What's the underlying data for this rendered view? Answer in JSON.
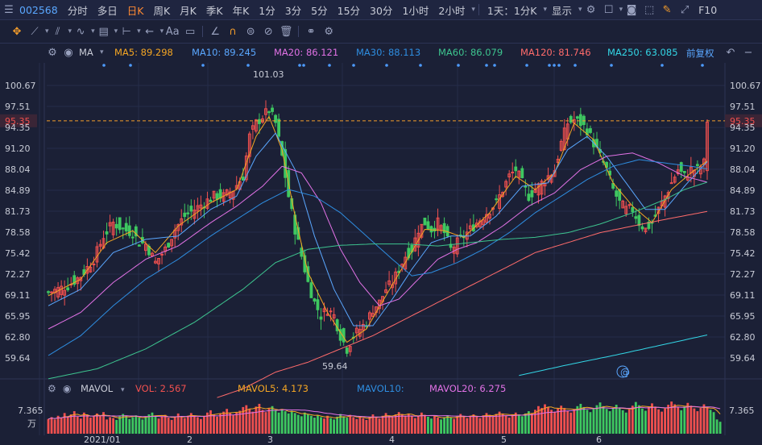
{
  "top_bar": {
    "stock_code": "002568",
    "periods": [
      "分时",
      "多日",
      "日K",
      "周K",
      "月K",
      "季K",
      "年K",
      "1分",
      "3分",
      "5分",
      "15分",
      "30分",
      "1小时",
      "2小时"
    ],
    "active_period": "日K",
    "range_select": "1天：1分K",
    "display_label": "显示",
    "f10_label": "F10"
  },
  "ma_bar": {
    "indicator": "MA",
    "ma5": "MA5: 89.298",
    "ma10": "MA10: 89.245",
    "ma20": "MA20: 86.121",
    "ma30": "MA30: 88.113",
    "ma60": "MA60: 86.079",
    "ma120": "MA120: 81.746",
    "ma250": "MA250: 63.085",
    "adjust": "前复权"
  },
  "vol_bar": {
    "indicator": "MAVOL",
    "vol": "VOL: 2.567",
    "mavol5": "MAVOL5: 4.173",
    "mavol10": "MAVOL10:",
    "mavol20": "MAVOL20: 6.275"
  },
  "colors": {
    "up": "#f0504f",
    "down": "#3ec860",
    "bg": "#1b2036",
    "ma5": "#f5a623",
    "ma10": "#5aa7ff",
    "ma20": "#e272e6",
    "ma30": "#2e8de0",
    "ma60": "#3dc48f",
    "ma120": "#ff6b6b",
    "ma250": "#33d6e6",
    "last_price": "#f0504f"
  },
  "chart_data": {
    "type": "candlestick",
    "y_ticks": [
      "100.67",
      "97.51",
      "94.35",
      "91.20",
      "88.04",
      "84.89",
      "81.73",
      "78.58",
      "75.42",
      "72.27",
      "69.11",
      "65.95",
      "62.80",
      "59.64"
    ],
    "ylim": [
      59.64,
      100.67
    ],
    "x_ticks": [
      "2021/01",
      "2",
      "3",
      "4",
      "5",
      "6"
    ],
    "last_price": "95.35",
    "high_label": "101.03",
    "low_label": "59.64",
    "vol_axis_label": "7.365",
    "vol_unit": "万",
    "vol_max": 7.365,
    "close_path": [
      [
        0,
        69.5
      ],
      [
        6,
        70.5
      ],
      [
        10,
        72
      ],
      [
        14,
        74.5
      ],
      [
        17,
        78
      ],
      [
        20,
        80
      ],
      [
        23,
        79
      ],
      [
        26,
        78.5
      ],
      [
        28,
        77
      ],
      [
        30,
        76.8
      ],
      [
        33,
        74
      ],
      [
        36,
        76
      ],
      [
        39,
        79
      ],
      [
        42,
        81
      ],
      [
        45,
        82
      ],
      [
        48,
        83
      ],
      [
        51,
        84
      ],
      [
        54,
        84
      ],
      [
        57,
        85
      ],
      [
        60,
        87
      ],
      [
        62,
        93
      ],
      [
        64,
        95
      ],
      [
        66,
        96
      ],
      [
        68,
        97
      ],
      [
        70,
        95
      ],
      [
        72,
        90
      ],
      [
        74,
        84
      ],
      [
        76,
        79
      ],
      [
        78,
        75
      ],
      [
        80,
        71
      ],
      [
        82,
        68
      ],
      [
        84,
        66
      ],
      [
        86,
        67
      ],
      [
        88,
        66
      ],
      [
        90,
        63
      ],
      [
        92,
        61
      ],
      [
        94,
        63
      ],
      [
        96,
        64
      ],
      [
        98,
        65
      ],
      [
        100,
        67
      ],
      [
        102,
        68
      ],
      [
        104,
        70
      ],
      [
        106,
        71
      ],
      [
        108,
        73
      ],
      [
        110,
        75
      ],
      [
        112,
        76
      ],
      [
        114,
        79
      ],
      [
        116,
        80
      ],
      [
        118,
        79
      ],
      [
        120,
        80
      ],
      [
        122,
        78.5
      ],
      [
        124,
        76
      ],
      [
        126,
        77
      ],
      [
        128,
        78
      ],
      [
        130,
        79
      ],
      [
        132,
        80
      ],
      [
        134,
        81
      ],
      [
        136,
        82
      ],
      [
        138,
        83
      ],
      [
        140,
        85
      ],
      [
        142,
        87
      ],
      [
        144,
        88
      ],
      [
        146,
        86
      ],
      [
        148,
        84
      ],
      [
        150,
        85
      ],
      [
        152,
        86
      ],
      [
        154,
        87
      ],
      [
        156,
        88
      ],
      [
        158,
        92
      ],
      [
        160,
        95
      ],
      [
        162,
        95.5
      ],
      [
        164,
        95
      ],
      [
        166,
        94
      ],
      [
        168,
        92
      ],
      [
        170,
        90
      ],
      [
        172,
        88
      ],
      [
        174,
        85
      ],
      [
        176,
        83
      ],
      [
        178,
        82
      ],
      [
        180,
        82
      ],
      [
        182,
        80
      ],
      [
        184,
        79
      ],
      [
        186,
        80
      ],
      [
        188,
        82
      ],
      [
        190,
        84
      ],
      [
        192,
        86
      ],
      [
        194,
        88
      ],
      [
        196,
        87
      ],
      [
        198,
        88
      ],
      [
        200,
        88
      ],
      [
        202,
        89
      ],
      [
        203,
        95.4
      ]
    ],
    "ma_lines": [
      {
        "name": "MA5",
        "points": [
          [
            0,
            69
          ],
          [
            10,
            71.5
          ],
          [
            18,
            77
          ],
          [
            26,
            78.8
          ],
          [
            33,
            75.5
          ],
          [
            40,
            79.5
          ],
          [
            50,
            83
          ],
          [
            58,
            85
          ],
          [
            64,
            93
          ],
          [
            68,
            96
          ],
          [
            72,
            91
          ],
          [
            76,
            81
          ],
          [
            80,
            72.5
          ],
          [
            86,
            66.5
          ],
          [
            92,
            62
          ],
          [
            98,
            64
          ],
          [
            104,
            69
          ],
          [
            110,
            74
          ],
          [
            116,
            79
          ],
          [
            122,
            78.8
          ],
          [
            128,
            77.8
          ],
          [
            136,
            81.5
          ],
          [
            144,
            87
          ],
          [
            150,
            85
          ],
          [
            156,
            87.5
          ],
          [
            162,
            95
          ],
          [
            168,
            92.5
          ],
          [
            174,
            86
          ],
          [
            180,
            82.5
          ],
          [
            186,
            80
          ],
          [
            192,
            85
          ],
          [
            198,
            87.5
          ],
          [
            203,
            89.3
          ]
        ]
      },
      {
        "name": "MA10",
        "points": [
          [
            0,
            67.5
          ],
          [
            10,
            70
          ],
          [
            20,
            75.5
          ],
          [
            30,
            77.5
          ],
          [
            40,
            78
          ],
          [
            50,
            82
          ],
          [
            58,
            84
          ],
          [
            64,
            90
          ],
          [
            70,
            93.5
          ],
          [
            76,
            88
          ],
          [
            82,
            78
          ],
          [
            88,
            70
          ],
          [
            94,
            64.5
          ],
          [
            100,
            64.5
          ],
          [
            106,
            68.5
          ],
          [
            112,
            73
          ],
          [
            118,
            77
          ],
          [
            124,
            78
          ],
          [
            130,
            78
          ],
          [
            138,
            81
          ],
          [
            146,
            85.5
          ],
          [
            154,
            86
          ],
          [
            160,
            91
          ],
          [
            166,
            93
          ],
          [
            172,
            90
          ],
          [
            178,
            86
          ],
          [
            184,
            82
          ],
          [
            190,
            82
          ],
          [
            196,
            85.5
          ],
          [
            203,
            89.2
          ]
        ]
      },
      {
        "name": "MA20",
        "points": [
          [
            0,
            64
          ],
          [
            10,
            66.5
          ],
          [
            20,
            71
          ],
          [
            30,
            74.5
          ],
          [
            40,
            76.5
          ],
          [
            50,
            80
          ],
          [
            58,
            82.5
          ],
          [
            66,
            85.5
          ],
          [
            72,
            88.5
          ],
          [
            78,
            87.5
          ],
          [
            84,
            83
          ],
          [
            90,
            76
          ],
          [
            96,
            71
          ],
          [
            102,
            67.5
          ],
          [
            108,
            68.5
          ],
          [
            114,
            71.5
          ],
          [
            120,
            74.5
          ],
          [
            126,
            76
          ],
          [
            132,
            77
          ],
          [
            140,
            79.5
          ],
          [
            148,
            82.5
          ],
          [
            156,
            84.5
          ],
          [
            164,
            88
          ],
          [
            172,
            90
          ],
          [
            180,
            90.5
          ],
          [
            188,
            89
          ],
          [
            196,
            87
          ],
          [
            203,
            86.1
          ]
        ]
      },
      {
        "name": "MA30",
        "points": [
          [
            0,
            60
          ],
          [
            10,
            63
          ],
          [
            20,
            67.5
          ],
          [
            30,
            71.5
          ],
          [
            40,
            74.5
          ],
          [
            50,
            78
          ],
          [
            58,
            80.5
          ],
          [
            66,
            83
          ],
          [
            74,
            85
          ],
          [
            82,
            84
          ],
          [
            90,
            81.5
          ],
          [
            98,
            78
          ],
          [
            106,
            74.5
          ],
          [
            112,
            72
          ],
          [
            118,
            72.5
          ],
          [
            126,
            74
          ],
          [
            134,
            76
          ],
          [
            142,
            78.5
          ],
          [
            150,
            81.5
          ],
          [
            158,
            84
          ],
          [
            166,
            86.5
          ],
          [
            174,
            88.5
          ],
          [
            182,
            89.5
          ],
          [
            190,
            89
          ],
          [
            198,
            88.5
          ],
          [
            203,
            88.1
          ]
        ]
      },
      {
        "name": "MA60",
        "points": [
          [
            0,
            56.5
          ],
          [
            15,
            58
          ],
          [
            30,
            61
          ],
          [
            45,
            65
          ],
          [
            60,
            70
          ],
          [
            70,
            74
          ],
          [
            80,
            76
          ],
          [
            90,
            76.6
          ],
          [
            100,
            76.8
          ],
          [
            110,
            76.8
          ],
          [
            120,
            76.5
          ],
          [
            130,
            77
          ],
          [
            140,
            77.5
          ],
          [
            150,
            77.8
          ],
          [
            160,
            78.5
          ],
          [
            170,
            79.8
          ],
          [
            180,
            81.5
          ],
          [
            190,
            83.5
          ],
          [
            196,
            85
          ],
          [
            203,
            86.1
          ]
        ]
      },
      {
        "name": "MA120",
        "points": [
          [
            0,
            47
          ],
          [
            30,
            50
          ],
          [
            60,
            55
          ],
          [
            70,
            57.5
          ],
          [
            80,
            59
          ],
          [
            90,
            61
          ],
          [
            100,
            63
          ],
          [
            110,
            65.5
          ],
          [
            120,
            68
          ],
          [
            130,
            70.5
          ],
          [
            140,
            73
          ],
          [
            150,
            75.5
          ],
          [
            160,
            77
          ],
          [
            170,
            78.5
          ],
          [
            180,
            79.5
          ],
          [
            190,
            80.5
          ],
          [
            203,
            81.7
          ]
        ]
      },
      {
        "name": "MA250",
        "points": [
          [
            145,
            57
          ],
          [
            160,
            58.6
          ],
          [
            175,
            60.1
          ],
          [
            190,
            61.7
          ],
          [
            203,
            63.1
          ]
        ]
      }
    ],
    "volume_values": [
      3.2,
      3.6,
      3.1,
      3.9,
      3.4,
      4.5,
      3.8,
      4.2,
      4.9,
      3.7,
      3.3,
      4.6,
      4.1,
      3.5,
      3.9,
      4.4,
      3.8,
      4.7,
      3.1,
      3.6,
      3.4,
      3.0,
      3.8,
      4.3,
      3.9,
      3.2,
      3.6,
      4.0,
      3.5,
      3.1,
      3.7,
      4.2,
      4.6,
      3.9,
      3.3,
      3.8,
      4.1,
      3.5,
      3.0,
      3.6,
      4.4,
      3.8,
      3.4,
      3.9,
      4.5,
      4.0,
      3.6,
      3.2,
      3.8,
      4.6,
      5.1,
      4.2,
      3.7,
      4.3,
      4.8,
      5.4,
      4.5,
      4.0,
      4.6,
      5.0,
      5.8,
      6.2,
      5.4,
      4.8,
      5.9,
      6.5,
      5.2,
      4.7,
      5.5,
      6.0,
      5.1,
      4.6,
      5.3,
      4.9,
      4.4,
      5.0,
      4.5,
      4.1,
      3.8,
      4.6,
      4.2,
      3.9,
      3.5,
      4.0,
      3.6,
      3.3,
      3.9,
      3.4,
      3.1,
      3.7,
      4.3,
      3.8,
      3.5,
      4.1,
      3.6,
      3.2,
      3.8,
      3.4,
      3.0,
      3.6,
      4.2,
      3.7,
      3.3,
      3.9,
      4.5,
      4.0,
      3.6,
      4.2,
      4.7,
      4.3,
      3.9,
      4.4,
      3.8,
      3.4,
      3.9,
      4.6,
      4.1,
      3.7,
      3.3,
      3.9,
      3.5,
      3.1,
      3.6,
      4.0,
      3.5,
      3.2,
      3.8,
      4.3,
      3.9,
      3.4,
      3.8,
      4.2,
      3.8,
      3.4,
      4.0,
      4.5,
      4.1,
      3.7,
      4.3,
      4.8,
      4.4,
      3.9,
      3.5,
      4.1,
      4.6,
      4.2,
      3.8,
      4.4,
      4.9,
      4.5,
      5.2,
      6.0,
      5.6,
      6.4,
      5.8,
      5.2,
      4.8,
      5.5,
      6.1,
      5.6,
      5.0,
      4.6,
      5.3,
      6.0,
      6.5,
      5.8,
      5.2,
      4.7,
      5.4,
      6.2,
      6.8,
      6.0,
      5.4,
      4.9,
      5.6,
      6.3,
      5.7,
      5.1,
      4.6,
      5.3,
      6.1,
      6.9,
      6.2,
      5.5,
      5.0,
      5.8,
      6.6,
      5.9,
      5.3,
      4.8,
      5.5,
      6.3,
      7.0,
      6.4,
      5.7,
      5.1,
      5.9,
      6.7,
      6.1,
      5.5,
      4.9,
      5.6,
      6.4,
      5.8,
      5.2,
      4.7,
      3.1,
      2.6
    ]
  }
}
